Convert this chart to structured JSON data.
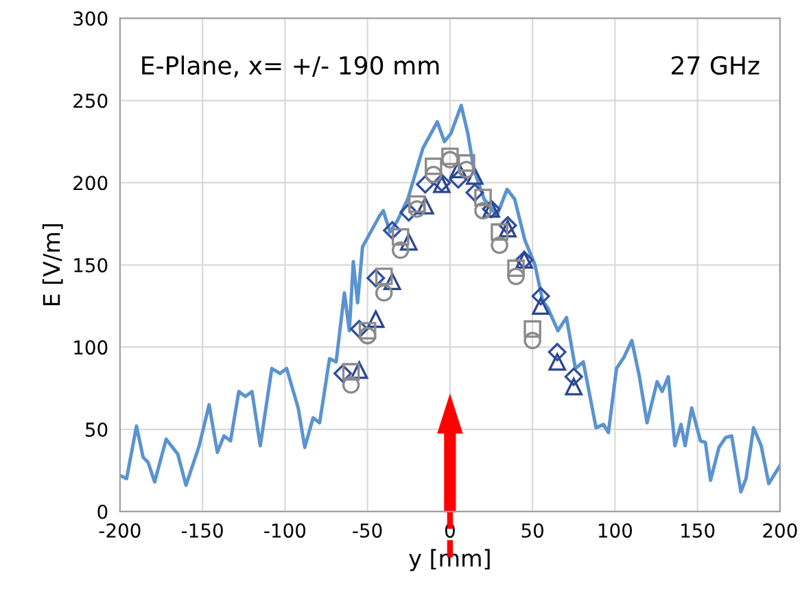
{
  "chart_data": {
    "type": "scatter",
    "xlabel": "y [mm]",
    "ylabel": "E [V/m]",
    "annotations": [
      "E-Plane, x= +/- 190 mm",
      "27 GHz"
    ],
    "xlim": [
      -200,
      200
    ],
    "xticks": [
      -200,
      -150,
      -100,
      -50,
      0,
      50,
      100,
      150,
      200
    ],
    "ylim": [
      0,
      300
    ],
    "yticks": [
      0,
      50,
      100,
      150,
      200,
      250,
      300
    ],
    "grid": true,
    "legend": false,
    "series": [
      {
        "type": "line",
        "marker": "none",
        "color": "#5b93cf",
        "x": [
          -200,
          -196,
          -190,
          -186,
          -183,
          -179,
          -172,
          -165,
          -160,
          -152,
          -146,
          -141,
          -137,
          -133,
          -128,
          -124,
          -120,
          -115,
          -108,
          -103,
          -99,
          -92,
          -88,
          -83,
          -79,
          -73,
          -69,
          -64,
          -61,
          -58.6,
          -56,
          -53,
          -42.6,
          -40.4,
          -36.4,
          -31.8,
          -25.6,
          -16.4,
          -7.7,
          -3.4,
          0.6,
          6.8,
          10.8,
          14.5,
          20.7,
          28.4,
          34.6,
          39.2,
          45.4,
          51.5,
          56.2,
          59.2,
          65.4,
          70.6,
          76,
          80.8,
          88.5,
          93,
          96,
          100.9,
          105.5,
          110.2,
          114.8,
          119.4,
          125.5,
          128.6,
          132.3,
          136.3,
          140,
          142.5,
          146.5,
          151.8,
          154.8,
          157.9,
          163,
          167,
          170.7,
          176.3,
          179.4,
          184,
          188.6,
          193.2,
          200
        ],
        "values": [
          22,
          20,
          52,
          33,
          30,
          18,
          44,
          35,
          16,
          40,
          65,
          36,
          46,
          43,
          73,
          70,
          73,
          40,
          87,
          84,
          87,
          63,
          39,
          57,
          54,
          93,
          91,
          133,
          110,
          152,
          127,
          161,
          180,
          183,
          170,
          177,
          190,
          221,
          237,
          225,
          230,
          247,
          230,
          208,
          190,
          180,
          196,
          190,
          165,
          150,
          128,
          124,
          110,
          118,
          87,
          91,
          51,
          53,
          48,
          87,
          94,
          104,
          82,
          54,
          79,
          73,
          82,
          40,
          53,
          40,
          63,
          43,
          42,
          19,
          39,
          45,
          46,
          12,
          20,
          51,
          40,
          17,
          28
        ]
      },
      {
        "marker": "diamond",
        "color": "#2f4e9e",
        "x": [
          -65,
          -55,
          -45,
          -35,
          -25,
          -15,
          -5,
          5,
          15,
          25,
          35,
          45,
          55,
          65,
          75
        ],
        "values": [
          84,
          111,
          142,
          171,
          182,
          199,
          200,
          202,
          194,
          184,
          174,
          153,
          131,
          97,
          82
        ]
      },
      {
        "marker": "triangle",
        "color": "#2a4590",
        "x": [
          -55,
          -45,
          -35,
          -25,
          -15,
          -5,
          5,
          15,
          25,
          35,
          45,
          55,
          65,
          75
        ],
        "values": [
          86,
          117,
          140,
          164,
          186,
          199,
          208,
          204,
          184,
          172,
          153,
          125,
          91,
          76
        ]
      },
      {
        "marker": "square",
        "color": "#8a8a8a",
        "x": [
          -60,
          -50,
          -40,
          -30,
          -20,
          -10,
          0,
          10,
          20,
          30,
          40,
          50
        ],
        "values": [
          85,
          110,
          143,
          167,
          187,
          210,
          216,
          212,
          191,
          170,
          148,
          111
        ]
      },
      {
        "marker": "circle",
        "color": "#8a8a8a",
        "x": [
          -60,
          -50,
          -40,
          -30,
          -20,
          -10,
          0,
          10,
          20,
          30,
          40,
          50
        ],
        "values": [
          77,
          107,
          133,
          159,
          184,
          205,
          214,
          208,
          183,
          162,
          143,
          104
        ]
      }
    ]
  }
}
